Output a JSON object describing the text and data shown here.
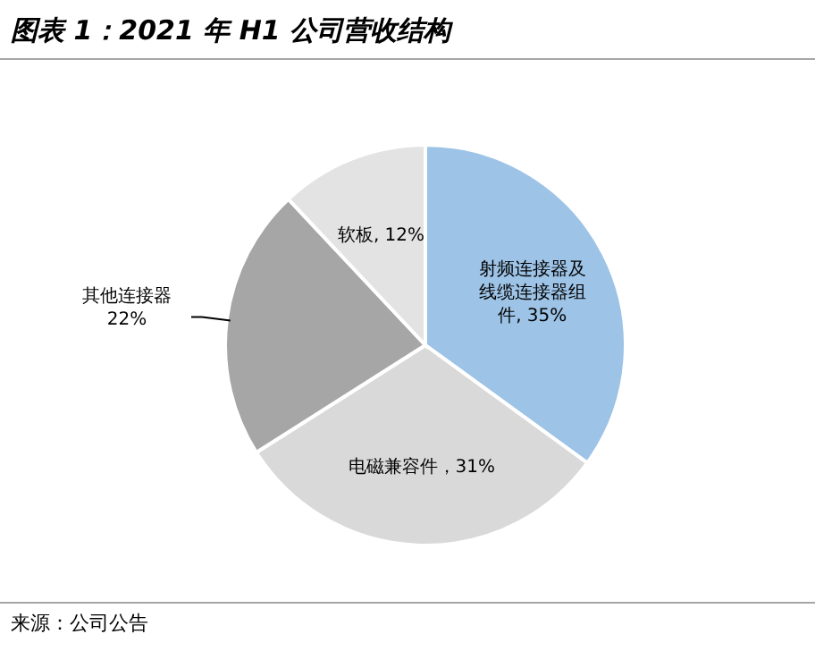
{
  "chart_data": {
    "type": "pie",
    "title": "图表 1：2021 年 H1 公司营收结构",
    "categories": [
      "射频连接器及线缆连接器组件",
      "电磁兼容件",
      "其他连接器",
      "软板"
    ],
    "values": [
      35,
      31,
      22,
      12
    ],
    "value_labels": [
      ", 35%",
      "，31%",
      "22%",
      ", 12%"
    ],
    "colors": [
      "#9dc3e6",
      "#d9d9d9",
      "#a6a6a6",
      "#e3e3e3"
    ],
    "annotations": [
      "来源：公司公告"
    ]
  }
}
